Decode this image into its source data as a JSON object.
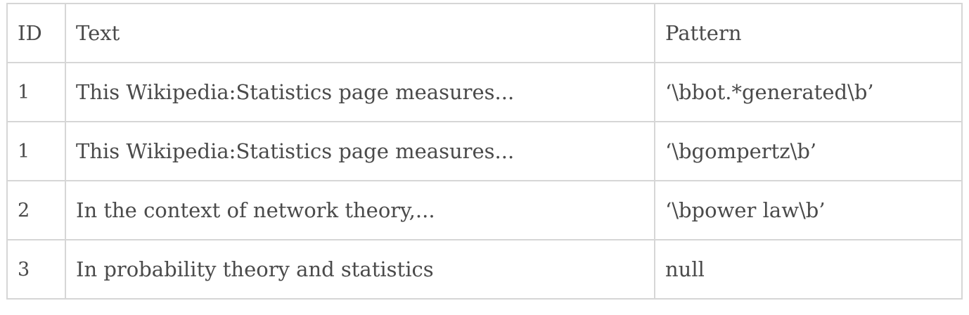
{
  "table": {
    "headers": {
      "id": "ID",
      "text": "Text",
      "pattern": "Pattern"
    },
    "rows": [
      {
        "id": "1",
        "text": "This Wikipedia:Statistics page measures...",
        "pattern": "‘\\bbot.*generated\\b’"
      },
      {
        "id": "1",
        "text": "This Wikipedia:Statistics page measures...",
        "pattern": "‘\\bgompertz\\b’"
      },
      {
        "id": "2",
        "text": "In the context of network theory,...",
        "pattern": "‘\\bpower law\\b’"
      },
      {
        "id": "3",
        "text": "In probability theory and statistics",
        "pattern": "null"
      }
    ]
  }
}
